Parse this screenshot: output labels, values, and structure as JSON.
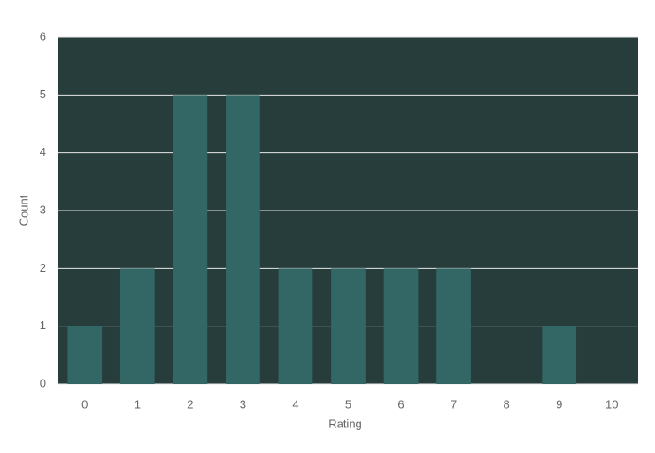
{
  "chart_data": {
    "type": "bar",
    "x_label": "Rating",
    "y_label": "Count",
    "categories": [
      0,
      1,
      2,
      3,
      4,
      5,
      6,
      7,
      8,
      9,
      10
    ],
    "values": [
      1,
      2,
      5,
      5,
      2,
      2,
      2,
      2,
      0,
      1,
      0
    ],
    "color": "#336766",
    "background": "#263d3c",
    "ylim": [
      0,
      6
    ],
    "yticks": [
      0,
      1,
      2,
      3,
      4,
      5,
      6
    ],
    "grid": true
  }
}
